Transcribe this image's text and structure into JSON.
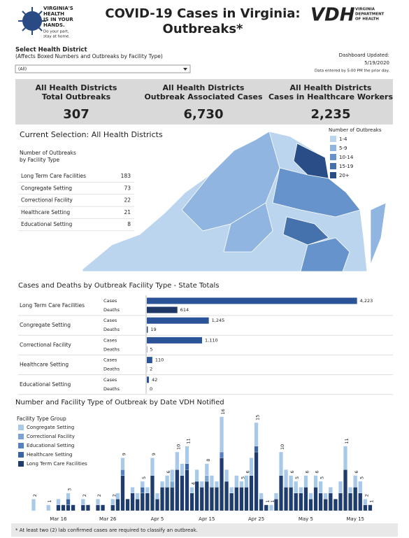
{
  "header": {
    "logo_lines": [
      "VIRGINIA'S",
      "HEALTH",
      "IS IN YOUR",
      "HANDS."
    ],
    "logo_tagline": [
      "Do your part,",
      "stay at home."
    ],
    "title_lines": [
      "COVID-19 Cases in Virginia:",
      "Outbreaks*"
    ],
    "vdh_mark": "VDH",
    "vdh_lines": [
      "VIRGINIA",
      "DEPARTMENT",
      "OF HEALTH"
    ]
  },
  "filter": {
    "label": "Select Health District",
    "note": "(Affects Boxed Numbers and Outbreaks by Facility Type)",
    "selected": "(All)"
  },
  "updated": {
    "label": "Dashboard Updated:",
    "date": "5/19/2020",
    "note": "Data entered by 5:00 PM the prior day."
  },
  "kpis": [
    {
      "label_lines": [
        "All Health Districts",
        "Total Outbreaks"
      ],
      "value": "307"
    },
    {
      "label_lines": [
        "All Health Districts",
        "Outbreak Associated Cases"
      ],
      "value": "6,730"
    },
    {
      "label_lines": [
        "All Health Districts",
        "Cases in Healthcare Workers"
      ],
      "value": "2,235"
    }
  ],
  "map": {
    "title": "Current Selection: All Health Districts",
    "legend_title": "Number of Outbreaks",
    "legend": [
      {
        "label": "1-4",
        "color": "#bcd5ee"
      },
      {
        "label": "5-9",
        "color": "#8fb5e0"
      },
      {
        "label": "10-14",
        "color": "#6693cc"
      },
      {
        "label": "15-19",
        "color": "#4571ad"
      },
      {
        "label": "20+",
        "color": "#294d86"
      }
    ]
  },
  "table": {
    "title_lines": [
      "Number of Outbreaks",
      "by Facility Type"
    ],
    "rows": [
      [
        "Long Term Care Facilities",
        183
      ],
      [
        "Congregate Setting",
        73
      ],
      [
        "Correctional Facility",
        22
      ],
      [
        "Healthcare Setting",
        21
      ],
      [
        "Educational Setting",
        8
      ]
    ]
  },
  "chart_data": [
    {
      "type": "hbar",
      "title": "Cases and Deaths by Outbreak Facility Type - State Totals",
      "categories": [
        "Long Term Care Facilities",
        "Congregate Setting",
        "Correctional Facility",
        "Healthcare Setting",
        "Educational Setting"
      ],
      "series": [
        {
          "name": "Cases",
          "color": "#2a5398",
          "values": [
            4223,
            1245,
            1110,
            110,
            42
          ],
          "value_labels": [
            "4,223",
            "1,245",
            "1,110",
            "110",
            "42"
          ]
        },
        {
          "name": "Deaths",
          "color": "#1d3867",
          "values": [
            614,
            19,
            5,
            2,
            0
          ],
          "value_labels": [
            "614",
            "19",
            "5",
            "2",
            "0"
          ]
        }
      ]
    },
    {
      "type": "stacked_bar",
      "title": "Number and Facility Type of Outbreak by Date VDH Notified",
      "legend_title": "Facility Type Group",
      "categories": [
        null,
        null,
        null,
        null,
        null,
        "Mar 16",
        null,
        null,
        null,
        null,
        null,
        null,
        null,
        null,
        null,
        "Mar 26",
        null,
        null,
        null,
        null,
        null,
        null,
        null,
        null,
        null,
        "Apr 5",
        null,
        null,
        null,
        null,
        null,
        null,
        null,
        null,
        null,
        "Apr 15",
        null,
        null,
        null,
        null,
        null,
        null,
        null,
        null,
        null,
        "Apr 25",
        null,
        null,
        null,
        null,
        null,
        null,
        null,
        null,
        null,
        "May 5",
        null,
        null,
        null,
        null,
        null,
        null,
        null,
        null,
        null,
        "May 15",
        null,
        null,
        null
      ],
      "series": [
        {
          "name": "Congregate Setting",
          "color": "#a9c9e8",
          "values": [
            2,
            0,
            0,
            1,
            0,
            1,
            0,
            1,
            0,
            0,
            1,
            0,
            0,
            1,
            0,
            0,
            1,
            1,
            2,
            0,
            1,
            1,
            1,
            1,
            3,
            1,
            1,
            2,
            2,
            3,
            2,
            3,
            1,
            2,
            1,
            2,
            2,
            1,
            6,
            2,
            1,
            2,
            1,
            2,
            3,
            4,
            1,
            0,
            1,
            1,
            4,
            3,
            2,
            2,
            1,
            2,
            1,
            2,
            2,
            1,
            1,
            0,
            2,
            4,
            1,
            2,
            2,
            1,
            0
          ]
        },
        {
          "name": "Correctional Facility",
          "color": "#7aa3d3",
          "values": [
            0,
            0,
            0,
            0,
            0,
            0,
            0,
            0,
            0,
            0,
            0,
            0,
            0,
            0,
            0,
            0,
            0,
            0,
            0,
            0,
            0,
            0,
            0,
            0,
            0,
            0,
            0,
            0,
            1,
            0,
            0,
            0,
            0,
            0,
            0,
            1,
            0,
            0,
            0,
            0,
            0,
            0,
            0,
            0,
            0,
            0,
            0,
            0,
            0,
            0,
            0,
            0,
            0,
            0,
            0,
            0,
            0,
            0,
            0,
            0,
            0,
            0,
            0,
            0,
            0,
            0,
            0,
            0,
            0
          ]
        },
        {
          "name": "Educational Setting",
          "color": "#5581bf",
          "values": [
            0,
            0,
            0,
            0,
            0,
            0,
            0,
            0,
            0,
            0,
            0,
            0,
            0,
            0,
            0,
            0,
            0,
            0,
            1,
            0,
            0,
            0,
            0,
            0,
            0,
            0,
            0,
            0,
            0,
            0,
            0,
            0,
            0,
            0,
            0,
            0,
            0,
            0,
            1,
            0,
            0,
            0,
            0,
            0,
            0,
            0,
            0,
            0,
            0,
            0,
            0,
            0,
            0,
            0,
            0,
            0,
            0,
            0,
            0,
            0,
            0,
            0,
            0,
            0,
            0,
            0,
            0,
            0,
            0
          ]
        },
        {
          "name": "Healthcare Setting",
          "color": "#3a64a3",
          "values": [
            0,
            0,
            0,
            0,
            0,
            0,
            0,
            1,
            0,
            0,
            0,
            0,
            0,
            0,
            0,
            0,
            0,
            0,
            0,
            0,
            0,
            0,
            1,
            0,
            0,
            0,
            0,
            0,
            0,
            0,
            0,
            1,
            0,
            0,
            0,
            0,
            0,
            0,
            0,
            0,
            0,
            0,
            0,
            0,
            0,
            1,
            0,
            0,
            0,
            0,
            0,
            0,
            0,
            0,
            0,
            0,
            0,
            0,
            0,
            0,
            0,
            0,
            0,
            0,
            0,
            0,
            0,
            0,
            0
          ]
        },
        {
          "name": "Long Term Care Facilities",
          "color": "#1f3c6e",
          "values": [
            0,
            0,
            0,
            0,
            0,
            1,
            1,
            1,
            1,
            0,
            1,
            1,
            0,
            1,
            1,
            0,
            1,
            2,
            6,
            2,
            3,
            2,
            3,
            3,
            6,
            2,
            4,
            4,
            4,
            7,
            6,
            7,
            3,
            5,
            4,
            5,
            4,
            4,
            9,
            5,
            3,
            4,
            4,
            4,
            6,
            10,
            2,
            1,
            0,
            2,
            6,
            4,
            4,
            3,
            3,
            4,
            2,
            4,
            3,
            2,
            3,
            2,
            3,
            7,
            3,
            4,
            3,
            1,
            1
          ]
        }
      ],
      "total_labels": [
        2,
        null,
        null,
        1,
        null,
        null,
        null,
        3,
        null,
        null,
        2,
        null,
        null,
        2,
        null,
        null,
        2,
        null,
        9,
        null,
        null,
        null,
        5,
        null,
        9,
        null,
        null,
        6,
        null,
        10,
        null,
        11,
        4,
        null,
        null,
        8,
        null,
        null,
        16,
        null,
        null,
        null,
        5,
        6,
        null,
        15,
        null,
        1,
        1,
        null,
        10,
        null,
        6,
        5,
        null,
        6,
        null,
        6,
        5,
        null,
        null,
        null,
        null,
        11,
        null,
        6,
        5,
        2,
        1
      ]
    }
  ],
  "footnote": "* At least two (2) lab confirmed cases are required to classify an outbreak."
}
